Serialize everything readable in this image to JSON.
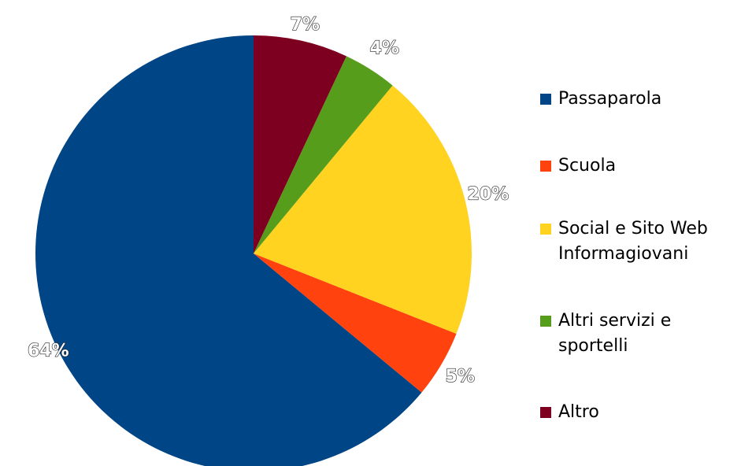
{
  "chart_data": {
    "type": "pie",
    "categories": [
      "Passaparola",
      "Scuola",
      "Social e Sito Web\nInformagiovani",
      "Altri servizi e\nsportelli",
      "Altro"
    ],
    "values": [
      64,
      5,
      20,
      4,
      7
    ],
    "value_labels": [
      "64%",
      "5%",
      "20%",
      "4%",
      "7%"
    ],
    "colors": [
      "#004586",
      "#ff420e",
      "#ffd320",
      "#579d1c",
      "#7e0021"
    ],
    "start_angle_deg": 0,
    "direction": "counterclockwise",
    "legend_position": "right"
  }
}
